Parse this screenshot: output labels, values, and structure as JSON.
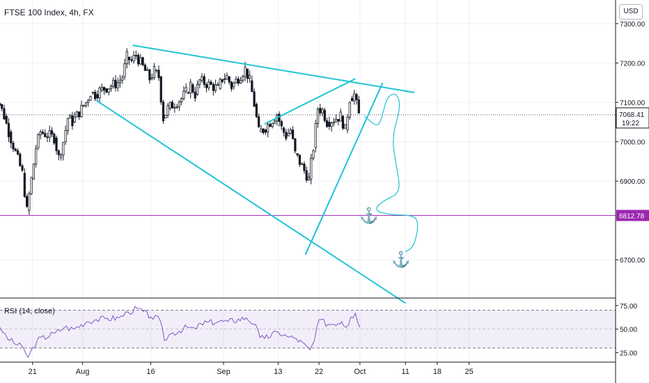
{
  "title": "FTSE 100 Index, 4h, FX",
  "currency": "USD",
  "colors": {
    "up": "#131722",
    "down": "#131722",
    "trendline": "#1ec3d6",
    "hline": "#9c27b0",
    "rsi": "#7e57c2",
    "grid": "#eef0f3",
    "axis": "#131722"
  },
  "chart_data": [
    {
      "type": "candlestick",
      "title": "FTSE 100 Index, 4h, FX",
      "ylim": [
        6603,
        7360
      ],
      "y_ticks": [
        "7300.00",
        "7200.00",
        "7100.00",
        "7000.00",
        "6900.00",
        "6700.00"
      ],
      "x_ticks": [
        "21",
        "Aug",
        "16",
        "Sep",
        "13",
        "22",
        "Oct",
        "11",
        "18",
        "25"
      ],
      "last_price": "7068.41",
      "countdown": "19:22",
      "hline_value": 6812.78,
      "hline_label": "6812.78",
      "anchors": [
        {
          "date": "2021-10-03",
          "price": 6812,
          "icon": "anchor-icon"
        },
        {
          "date": "2021-10-10",
          "price": 6700,
          "icon": "anchor-icon"
        }
      ],
      "trendlines": [
        {
          "from": [
            "2021-08-12",
            7245
          ],
          "to": [
            "2021-10-13",
            7125
          ]
        },
        {
          "from": [
            "2021-08-04",
            7105
          ],
          "to": [
            "2021-10-11",
            6590
          ]
        },
        {
          "from": [
            "2021-09-19",
            6713
          ],
          "to": [
            "2021-10-06",
            7150
          ]
        },
        {
          "from": [
            "2021-09-10",
            7045
          ],
          "to": [
            "2021-09-30",
            7160
          ]
        }
      ],
      "projection_path": [
        [
          "2021-10-02",
          7065
        ],
        [
          "2021-10-05",
          7035
        ],
        [
          "2021-10-06",
          7070
        ],
        [
          "2021-10-07",
          7115
        ],
        [
          "2021-10-09",
          7125
        ],
        [
          "2021-10-10",
          7090
        ],
        [
          "2021-10-08",
          7010
        ],
        [
          "2021-10-09",
          6940
        ],
        [
          "2021-10-10",
          6870
        ],
        [
          "2021-10-06",
          6850
        ],
        [
          "2021-10-04",
          6825
        ],
        [
          "2021-10-08",
          6814
        ],
        [
          "2021-10-12",
          6814
        ],
        [
          "2021-10-14",
          6800
        ],
        [
          "2021-10-13",
          6735
        ],
        [
          "2021-10-11",
          6720
        ]
      ],
      "close_series": [
        [
          "2021-07-12",
          7110
        ],
        [
          "2021-07-13",
          7125
        ],
        [
          "2021-07-14",
          7095
        ],
        [
          "2021-07-15",
          7065
        ],
        [
          "2021-07-16",
          7025
        ],
        [
          "2021-07-19",
          6920
        ],
        [
          "2021-07-20",
          6825
        ],
        [
          "2021-07-21",
          6905
        ],
        [
          "2021-07-22",
          6985
        ],
        [
          "2021-07-23",
          7025
        ],
        [
          "2021-07-26",
          7010
        ],
        [
          "2021-07-27",
          6960
        ],
        [
          "2021-07-28",
          7000
        ],
        [
          "2021-07-29",
          7060
        ],
        [
          "2021-07-30",
          7050
        ],
        [
          "2021-08-02",
          7100
        ],
        [
          "2021-08-03",
          7125
        ],
        [
          "2021-08-04",
          7120
        ],
        [
          "2021-08-05",
          7130
        ],
        [
          "2021-08-06",
          7135
        ],
        [
          "2021-08-09",
          7150
        ],
        [
          "2021-08-10",
          7165
        ],
        [
          "2021-08-11",
          7215
        ],
        [
          "2021-08-12",
          7205
        ],
        [
          "2021-08-13",
          7220
        ],
        [
          "2021-08-16",
          7160
        ],
        [
          "2021-08-17",
          7180
        ],
        [
          "2021-08-18",
          7165
        ],
        [
          "2021-08-19",
          7060
        ],
        [
          "2021-08-20",
          7085
        ],
        [
          "2021-08-23",
          7110
        ],
        [
          "2021-08-24",
          7125
        ],
        [
          "2021-08-25",
          7145
        ],
        [
          "2021-08-26",
          7120
        ],
        [
          "2021-08-27",
          7155
        ],
        [
          "2021-08-31",
          7135
        ],
        [
          "2021-09-01",
          7160
        ],
        [
          "2021-09-02",
          7165
        ],
        [
          "2021-09-03",
          7140
        ],
        [
          "2021-09-06",
          7185
        ],
        [
          "2021-09-07",
          7155
        ],
        [
          "2021-09-08",
          7095
        ],
        [
          "2021-09-09",
          7025
        ],
        [
          "2021-09-10",
          7030
        ],
        [
          "2021-09-13",
          7070
        ],
        [
          "2021-09-14",
          7035
        ],
        [
          "2021-09-15",
          7015
        ],
        [
          "2021-09-16",
          7030
        ],
        [
          "2021-09-17",
          6970
        ],
        [
          "2021-09-20",
          6905
        ],
        [
          "2021-09-21",
          6985
        ],
        [
          "2021-09-22",
          7085
        ],
        [
          "2021-09-23",
          7080
        ],
        [
          "2021-09-24",
          7050
        ],
        [
          "2021-09-27",
          7065
        ],
        [
          "2021-09-28",
          7030
        ],
        [
          "2021-09-29",
          7110
        ],
        [
          "2021-09-30",
          7120
        ],
        [
          "2021-10-01",
          7068
        ]
      ]
    },
    {
      "type": "line",
      "title": "RSI (14, close)",
      "ylim": [
        15,
        80
      ],
      "y_ticks": [
        "75.00",
        "50.00",
        "25.00"
      ],
      "band": [
        30,
        70
      ],
      "midline": 50,
      "series": [
        {
          "name": "RSI",
          "x": [
            "2021-07-12",
            "2021-07-14",
            "2021-07-16",
            "2021-07-19",
            "2021-07-20",
            "2021-07-22",
            "2021-07-26",
            "2021-07-28",
            "2021-07-30",
            "2021-08-02",
            "2021-08-04",
            "2021-08-06",
            "2021-08-09",
            "2021-08-11",
            "2021-08-13",
            "2021-08-16",
            "2021-08-18",
            "2021-08-19",
            "2021-08-20",
            "2021-08-24",
            "2021-08-26",
            "2021-08-27",
            "2021-08-31",
            "2021-09-02",
            "2021-09-06",
            "2021-09-08",
            "2021-09-09",
            "2021-09-10",
            "2021-09-13",
            "2021-09-15",
            "2021-09-17",
            "2021-09-20",
            "2021-09-21",
            "2021-09-22",
            "2021-09-24",
            "2021-09-27",
            "2021-09-28",
            "2021-09-29",
            "2021-09-30",
            "2021-10-01"
          ],
          "values": [
            58,
            50,
            38,
            30,
            20,
            38,
            46,
            52,
            50,
            58,
            60,
            61,
            62,
            68,
            72,
            63,
            60,
            38,
            44,
            52,
            50,
            56,
            58,
            58,
            62,
            55,
            41,
            40,
            47,
            42,
            40,
            28,
            38,
            60,
            55,
            58,
            52,
            63,
            67,
            52
          ]
        }
      ]
    }
  ]
}
